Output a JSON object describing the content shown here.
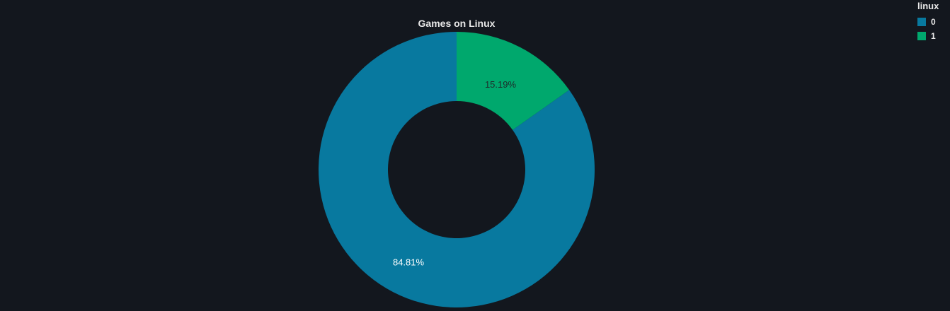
{
  "chart_data": {
    "type": "pie",
    "title": "Games on Linux",
    "legend_title": "linux",
    "legend_position": "top-right",
    "hole": true,
    "slices": [
      {
        "label": "0",
        "value": 84.81,
        "display": "84.81%",
        "color": "#08799f",
        "text_color": "#ffffff"
      },
      {
        "label": "1",
        "value": 15.19,
        "display": "15.19%",
        "color": "#00a86d",
        "text_color": "#1d2b2a"
      }
    ]
  },
  "colors": {
    "background": "#13171e"
  }
}
